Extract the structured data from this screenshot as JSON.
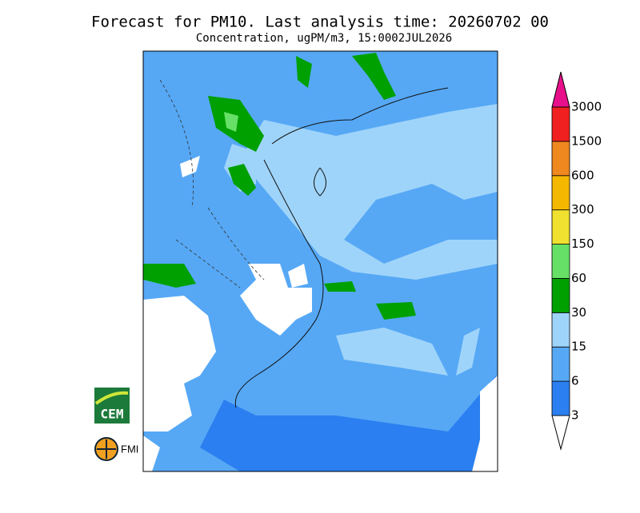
{
  "header": {
    "title": "Forecast for PM10. Last analysis time: 20260702 00",
    "subtitle": "Concentration, ugPM/m3, 15:0002JUL2026"
  },
  "colorbar": {
    "levels": [
      3,
      6,
      15,
      30,
      60,
      150,
      300,
      600,
      1500,
      3000
    ],
    "colors": [
      "#ffffff",
      "#2b7ff0",
      "#56a8f5",
      "#9fd4fa",
      "#00a000",
      "#66e066",
      "#f0e030",
      "#f5b800",
      "#f08820",
      "#f02020",
      "#e8108a"
    ]
  },
  "logos": {
    "cem": "CEM",
    "fmi": "FMI"
  }
}
